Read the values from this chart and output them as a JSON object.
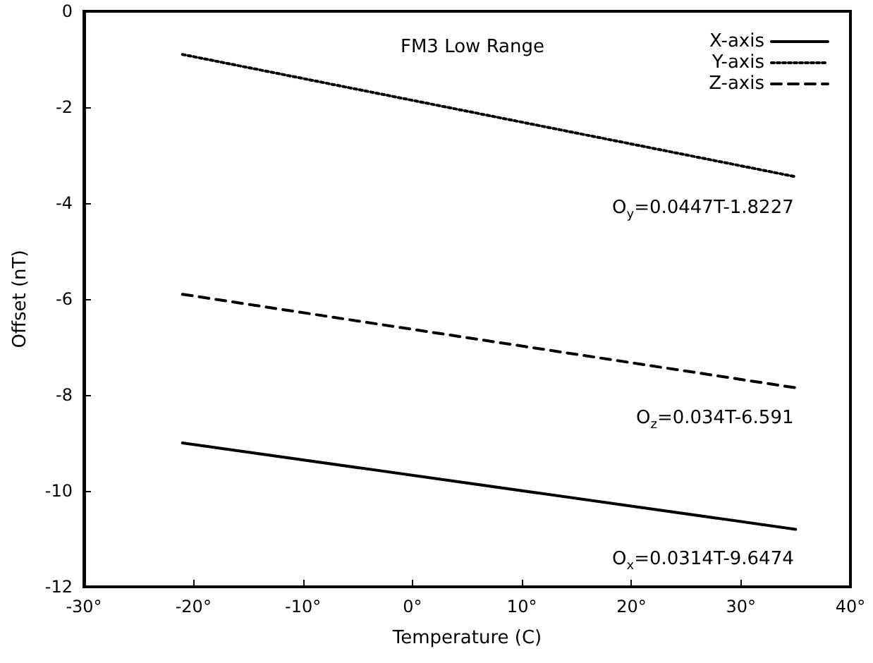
{
  "chart_data": {
    "type": "line",
    "title": "FM3 Low Range",
    "xlabel": "Temperature (C)",
    "ylabel": "Offset (nT)",
    "x": [
      -21,
      35
    ],
    "series": [
      {
        "name": "X-axis",
        "color": "#000000",
        "line_style": "solid",
        "values": [
          -9.0,
          -10.8
        ]
      },
      {
        "name": "Y-axis",
        "color": "#000000",
        "line_style": "dotted",
        "values": [
          -0.9,
          -3.45
        ]
      },
      {
        "name": "Z-axis",
        "color": "#000000",
        "line_style": "dashed",
        "values": [
          -5.9,
          -7.85
        ]
      }
    ],
    "xlim": [
      -30,
      40
    ],
    "xticks": [
      {
        "value": -30,
        "label": "-30°"
      },
      {
        "value": -20,
        "label": "-20°"
      },
      {
        "value": -10,
        "label": "-10°"
      },
      {
        "value": 0,
        "label": "0°"
      },
      {
        "value": 10,
        "label": "10°"
      },
      {
        "value": 20,
        "label": "20°"
      },
      {
        "value": 30,
        "label": "30°"
      },
      {
        "value": 40,
        "label": "40°"
      }
    ],
    "ylim": [
      -12,
      0
    ],
    "yticks": [
      -12,
      -10,
      -8,
      -6,
      -4,
      -2,
      0
    ],
    "annotations": [
      "O$_{y}$=0.0447T-1.8227",
      "O$_{z}$=0.034T-6.591",
      "O$_{x}$=0.0314T-9.6474"
    ],
    "legend": "top right",
    "grid": false,
    "marker": "none"
  }
}
